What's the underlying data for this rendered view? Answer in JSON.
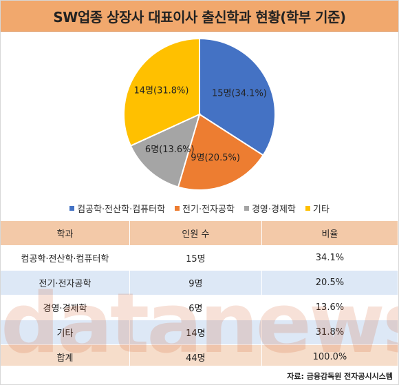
{
  "title": "SW업종 상장사 대표이사 출신학과 현황(학부 기준)",
  "chart_data": {
    "type": "pie",
    "title": "SW업종 상장사 대표이사 출신학과 현황(학부 기준)",
    "categories": [
      "컴공학·전산학·컴퓨터학",
      "전기·전자공학",
      "경영·경제학",
      "기타"
    ],
    "values": [
      15,
      9,
      6,
      14
    ],
    "percents": [
      34.1,
      20.5,
      13.6,
      31.8
    ],
    "slice_labels": [
      "15명(34.1%)",
      "9명(20.5%)",
      "6명(13.6%)",
      "14명(31.8%)"
    ],
    "colors": [
      "#4472c4",
      "#ed7d31",
      "#a5a5a5",
      "#ffc000"
    ],
    "legend_position": "bottom"
  },
  "table": {
    "headers": [
      "학과",
      "인원 수",
      "비율"
    ],
    "rows": [
      [
        "컴공학·전산학·컴퓨터학",
        "15명",
        "34.1%"
      ],
      [
        "전기·전자공학",
        "9명",
        "20.5%"
      ],
      [
        "경영·경제학",
        "6명",
        "13.6%"
      ],
      [
        "기타",
        "14명",
        "31.8%"
      ],
      [
        "합계",
        "44명",
        "100.0%"
      ]
    ]
  },
  "watermark": "datanews",
  "source": "자료: 금융감독원 전자공시시스템"
}
